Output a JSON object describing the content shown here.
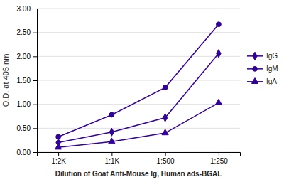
{
  "chart_data": {
    "type": "line",
    "categories": [
      "1:2K",
      "1:1K",
      "1:500",
      "1:250"
    ],
    "series": [
      {
        "name": "IgG",
        "color": "#32009a",
        "marker": "diamond",
        "values": [
          0.2,
          0.42,
          0.72,
          2.06
        ]
      },
      {
        "name": "IgM",
        "color": "#32009a",
        "marker": "circle",
        "values": [
          0.32,
          0.78,
          1.35,
          2.67
        ]
      },
      {
        "name": "IgA",
        "color": "#32009a",
        "marker": "triangle",
        "values": [
          0.1,
          0.22,
          0.4,
          1.03
        ]
      }
    ],
    "xlabel": "Dilution of Goat Anti-Mouse Ig, Human ads-BGAL",
    "ylabel": "O.D. at 405 nm",
    "ylim": [
      0.0,
      3.0
    ],
    "yticks": [
      {
        "value": 0.0,
        "label": "0.00"
      },
      {
        "value": 0.5,
        "label": "0.50"
      },
      {
        "value": 1.0,
        "label": "1.00"
      },
      {
        "value": 1.5,
        "label": "1.50"
      },
      {
        "value": 2.0,
        "label": "2.00"
      },
      {
        "value": 2.5,
        "label": "2.50"
      },
      {
        "value": 3.0,
        "label": "3.00"
      }
    ],
    "grid": true,
    "legend": "right"
  }
}
